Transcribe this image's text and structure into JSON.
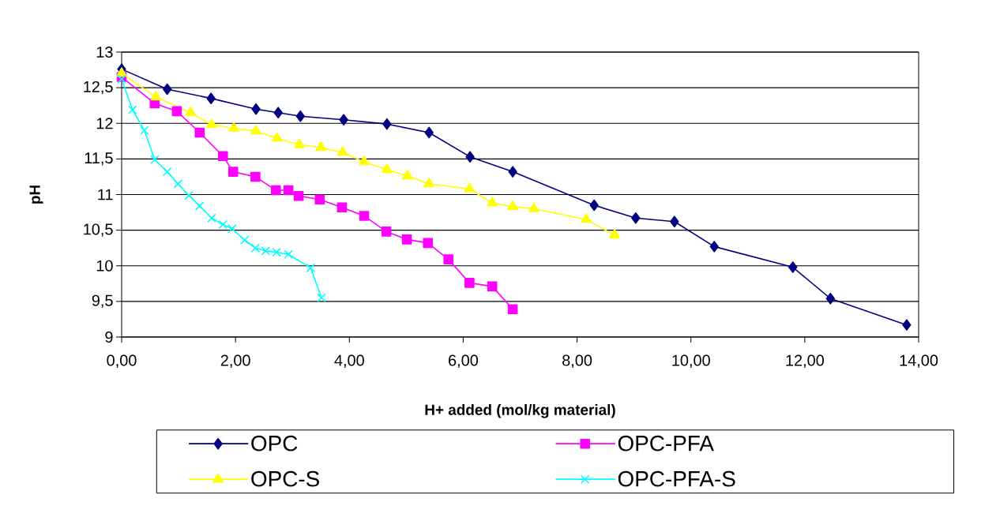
{
  "chart_data": {
    "type": "line",
    "xlabel": "H+ added (mol/kg material)",
    "ylabel": "pH",
    "xlim": [
      0,
      14
    ],
    "ylim": [
      9,
      13
    ],
    "xticks": [
      {
        "value": 0,
        "label": "0,00"
      },
      {
        "value": 2,
        "label": "2,00"
      },
      {
        "value": 4,
        "label": "4,00"
      },
      {
        "value": 6,
        "label": "6,00"
      },
      {
        "value": 8,
        "label": "8,00"
      },
      {
        "value": 10,
        "label": "10,00"
      },
      {
        "value": 12,
        "label": "12,00"
      },
      {
        "value": 14,
        "label": "14,00"
      }
    ],
    "yticks": [
      9,
      {
        "value": 9.5,
        "label": "9,5"
      },
      10,
      {
        "value": 10.5,
        "label": "10,5"
      },
      11,
      {
        "value": 11.5,
        "label": "11,5"
      },
      12,
      {
        "value": 12.5,
        "label": "12,5"
      },
      13
    ],
    "grid": "y",
    "legend": "bottom",
    "line_style": "solid",
    "series": [
      {
        "name": "OPC",
        "color": "#000080",
        "marker": "diamond",
        "x": [
          0,
          0.8,
          1.57,
          2.36,
          2.75,
          3.14,
          3.9,
          4.66,
          5.4,
          6.12,
          6.87,
          8.3,
          9.03,
          9.71,
          10.41,
          11.79,
          12.45,
          13.79
        ],
        "values": [
          12.76,
          12.48,
          12.35,
          12.2,
          12.15,
          12.1,
          12.05,
          11.99,
          11.87,
          11.53,
          11.32,
          10.85,
          10.67,
          10.62,
          10.27,
          9.98,
          9.54,
          9.17
        ]
      },
      {
        "name": "OPC-PFA",
        "color": "#ff00ff",
        "marker": "square",
        "x": [
          0,
          0.58,
          0.97,
          1.37,
          1.78,
          1.96,
          2.35,
          2.71,
          2.93,
          3.11,
          3.48,
          3.87,
          4.26,
          4.65,
          5.01,
          5.38,
          5.74,
          6.11,
          6.51,
          6.87
        ],
        "values": [
          12.65,
          12.28,
          12.17,
          11.87,
          11.54,
          11.32,
          11.25,
          11.06,
          11.06,
          10.98,
          10.93,
          10.82,
          10.7,
          10.48,
          10.37,
          10.32,
          10.09,
          9.76,
          9.71,
          9.39
        ]
      },
      {
        "name": "OPC-S",
        "color": "#ffff00",
        "marker": "triangle",
        "x": [
          0,
          0.6,
          1.21,
          1.58,
          1.97,
          2.36,
          2.73,
          3.12,
          3.5,
          3.88,
          4.26,
          4.66,
          5.02,
          5.4,
          6.11,
          6.51,
          6.87,
          7.24,
          8.16,
          8.66
        ],
        "values": [
          12.7,
          12.37,
          12.15,
          11.98,
          11.93,
          11.89,
          11.79,
          11.7,
          11.66,
          11.59,
          11.46,
          11.35,
          11.26,
          11.15,
          11.08,
          10.88,
          10.83,
          10.8,
          10.65,
          10.43
        ]
      },
      {
        "name": "OPC-PFA-S",
        "color": "#00ffff",
        "marker": "cross",
        "x": [
          0,
          0.19,
          0.4,
          0.58,
          0.8,
          0.99,
          1.18,
          1.37,
          1.58,
          1.78,
          1.94,
          2.16,
          2.35,
          2.53,
          2.72,
          2.93,
          3.32,
          3.51
        ],
        "values": [
          12.62,
          12.19,
          11.9,
          11.49,
          11.32,
          11.15,
          10.99,
          10.84,
          10.67,
          10.58,
          10.52,
          10.36,
          10.25,
          10.21,
          10.19,
          10.16,
          9.97,
          9.55
        ]
      }
    ]
  }
}
